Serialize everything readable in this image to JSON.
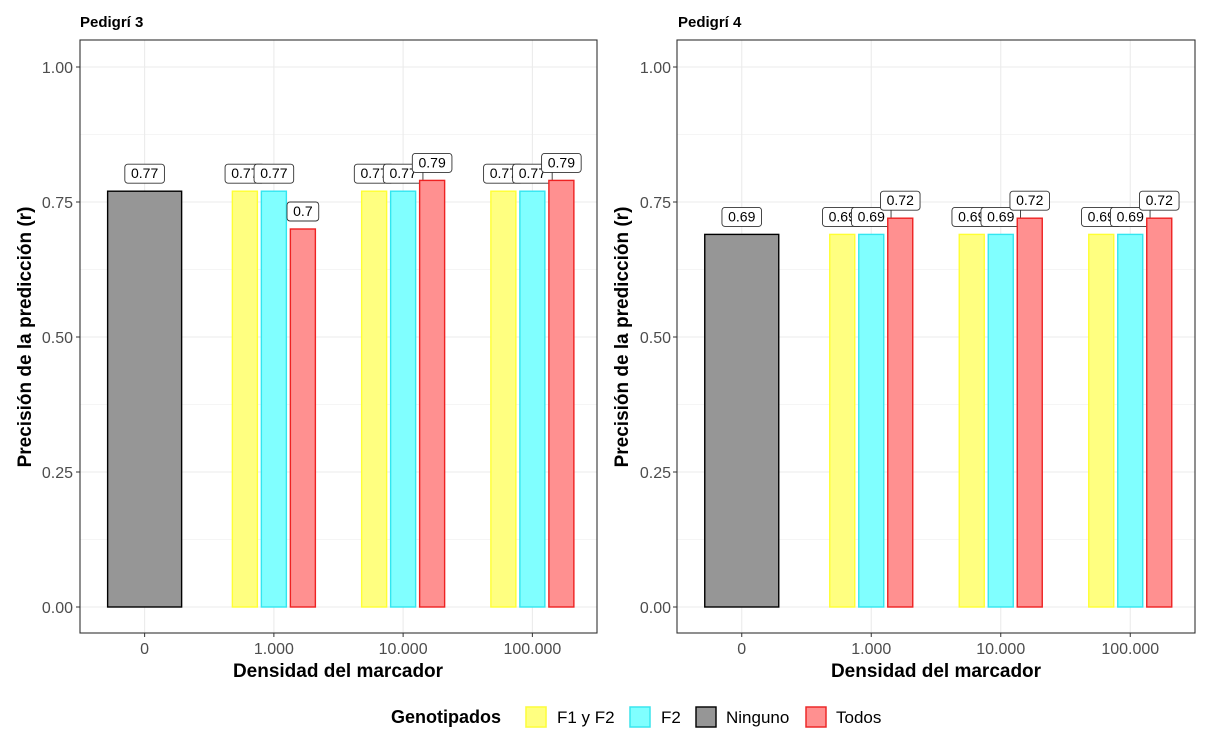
{
  "chart_data": [
    {
      "type": "bar",
      "title": "Pedigrí 3",
      "xlabel": "Densidad del marcador",
      "ylabel": "Precisión de la predicción (r)",
      "ylim": [
        0,
        1.05
      ],
      "yticks": [
        "0.00",
        "0.25",
        "0.50",
        "0.75",
        "1.00"
      ],
      "grid": true,
      "categories": [
        "0",
        "1.000",
        "10.000",
        "100.000"
      ],
      "series": [
        {
          "name": "Ninguno",
          "values": [
            0.77,
            null,
            null,
            null
          ]
        },
        {
          "name": "F1 y F2",
          "values": [
            null,
            0.77,
            0.77,
            0.77
          ]
        },
        {
          "name": "F2",
          "values": [
            null,
            0.77,
            0.77,
            0.77
          ]
        },
        {
          "name": "Todos",
          "values": [
            null,
            0.7,
            0.79,
            0.79
          ]
        }
      ]
    },
    {
      "type": "bar",
      "title": "Pedigrí 4",
      "xlabel": "Densidad del marcador",
      "ylabel": "Precisión de la predicción (r)",
      "ylim": [
        0,
        1.05
      ],
      "yticks": [
        "0.00",
        "0.25",
        "0.50",
        "0.75",
        "1.00"
      ],
      "grid": true,
      "categories": [
        "0",
        "1.000",
        "10.000",
        "100.000"
      ],
      "series": [
        {
          "name": "Ninguno",
          "values": [
            0.69,
            null,
            null,
            null
          ]
        },
        {
          "name": "F1 y F2",
          "values": [
            null,
            0.69,
            0.69,
            0.69
          ]
        },
        {
          "name": "F2",
          "values": [
            null,
            0.69,
            0.69,
            0.69
          ]
        },
        {
          "name": "Todos",
          "values": [
            null,
            0.72,
            0.72,
            0.72
          ]
        }
      ]
    }
  ],
  "legend": {
    "title": "Genotipados",
    "placement": "bottom",
    "items": [
      {
        "name": "F1 y F2",
        "fill": "#ffff80",
        "stroke": "#ffff33"
      },
      {
        "name": "F2",
        "fill": "#80ffff",
        "stroke": "#33e6f0"
      },
      {
        "name": "Ninguno",
        "fill": "#969696",
        "stroke": "#000000"
      },
      {
        "name": "Todos",
        "fill": "#ff9090",
        "stroke": "#ee2222"
      }
    ]
  }
}
